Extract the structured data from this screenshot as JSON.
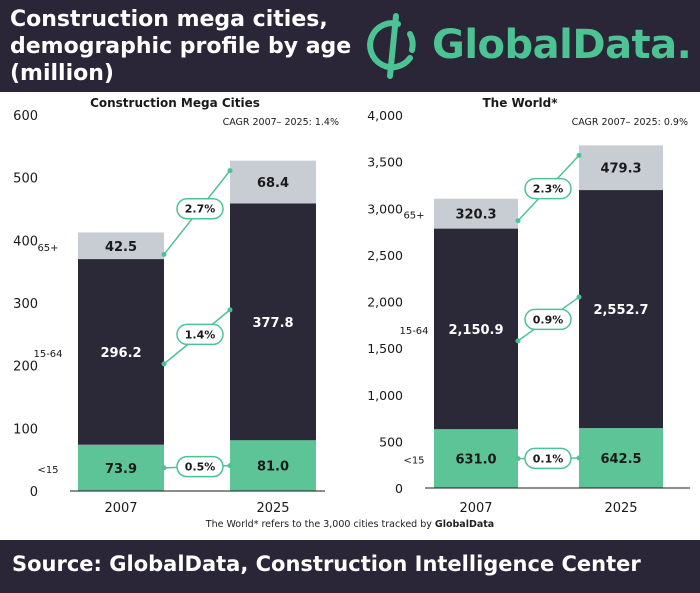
{
  "header": {
    "title_line1": "Construction mega cities,",
    "title_line2": "demographic profile by age",
    "title_line3": "(million)",
    "logo_text": "GlobalData."
  },
  "colors": {
    "header_bg": "#2a2637",
    "brand_green": "#4cc393",
    "age_lt15": "#5cc497",
    "age_15_64": "#2b2838",
    "age_65plus": "#c8ccd3"
  },
  "footnote": {
    "text": "The World* refers to the 3,000 cities tracked by ",
    "brand": "GlobalData"
  },
  "source_text": "Source:  GlobalData, Construction Intelligence Center",
  "chart_data": [
    {
      "type": "bar",
      "stacked": true,
      "title": "Construction Mega Cities",
      "subtitle": "CAGR 2007– 2025: 1.4%",
      "categories": [
        "2007",
        "2025"
      ],
      "ylim": [
        0,
        600
      ],
      "yticks": [
        0,
        100,
        200,
        300,
        400,
        500,
        600
      ],
      "ytick_labels": [
        "0",
        "100",
        "200",
        "300",
        "400",
        "500",
        "600"
      ],
      "series": [
        {
          "name": "<15",
          "values": [
            73.9,
            81.0
          ],
          "labels": [
            "73.9",
            "81.0"
          ]
        },
        {
          "name": "15-64",
          "values": [
            296.2,
            377.8
          ],
          "labels": [
            "296.2",
            "377.8"
          ]
        },
        {
          "name": "65+",
          "values": [
            42.5,
            68.4
          ],
          "labels": [
            "42.5",
            "68.4"
          ]
        }
      ],
      "cagr": [
        "0.5%",
        "1.4%",
        "2.7%"
      ]
    },
    {
      "type": "bar",
      "stacked": true,
      "title": "The World*",
      "subtitle": "CAGR 2007– 2025: 0.9%",
      "categories": [
        "2007",
        "2025"
      ],
      "ylim": [
        0,
        4000
      ],
      "yticks": [
        0,
        500,
        1000,
        1500,
        2000,
        2500,
        3000,
        3500,
        4000
      ],
      "ytick_labels": [
        "0",
        "500",
        "1,000",
        "1,500",
        "2,000",
        "2,500",
        "3,000",
        "3,500",
        "4,000"
      ],
      "series": [
        {
          "name": "<15",
          "values": [
            631.0,
            642.5
          ],
          "labels": [
            "631.0",
            "642.5"
          ]
        },
        {
          "name": "15-64",
          "values": [
            2150.9,
            2552.7
          ],
          "labels": [
            "2,150.9",
            "2,552.7"
          ]
        },
        {
          "name": "65+",
          "values": [
            320.3,
            479.3
          ],
          "labels": [
            "320.3",
            "479.3"
          ]
        }
      ],
      "cagr": [
        "0.1%",
        "0.9%",
        "2.3%"
      ]
    }
  ]
}
